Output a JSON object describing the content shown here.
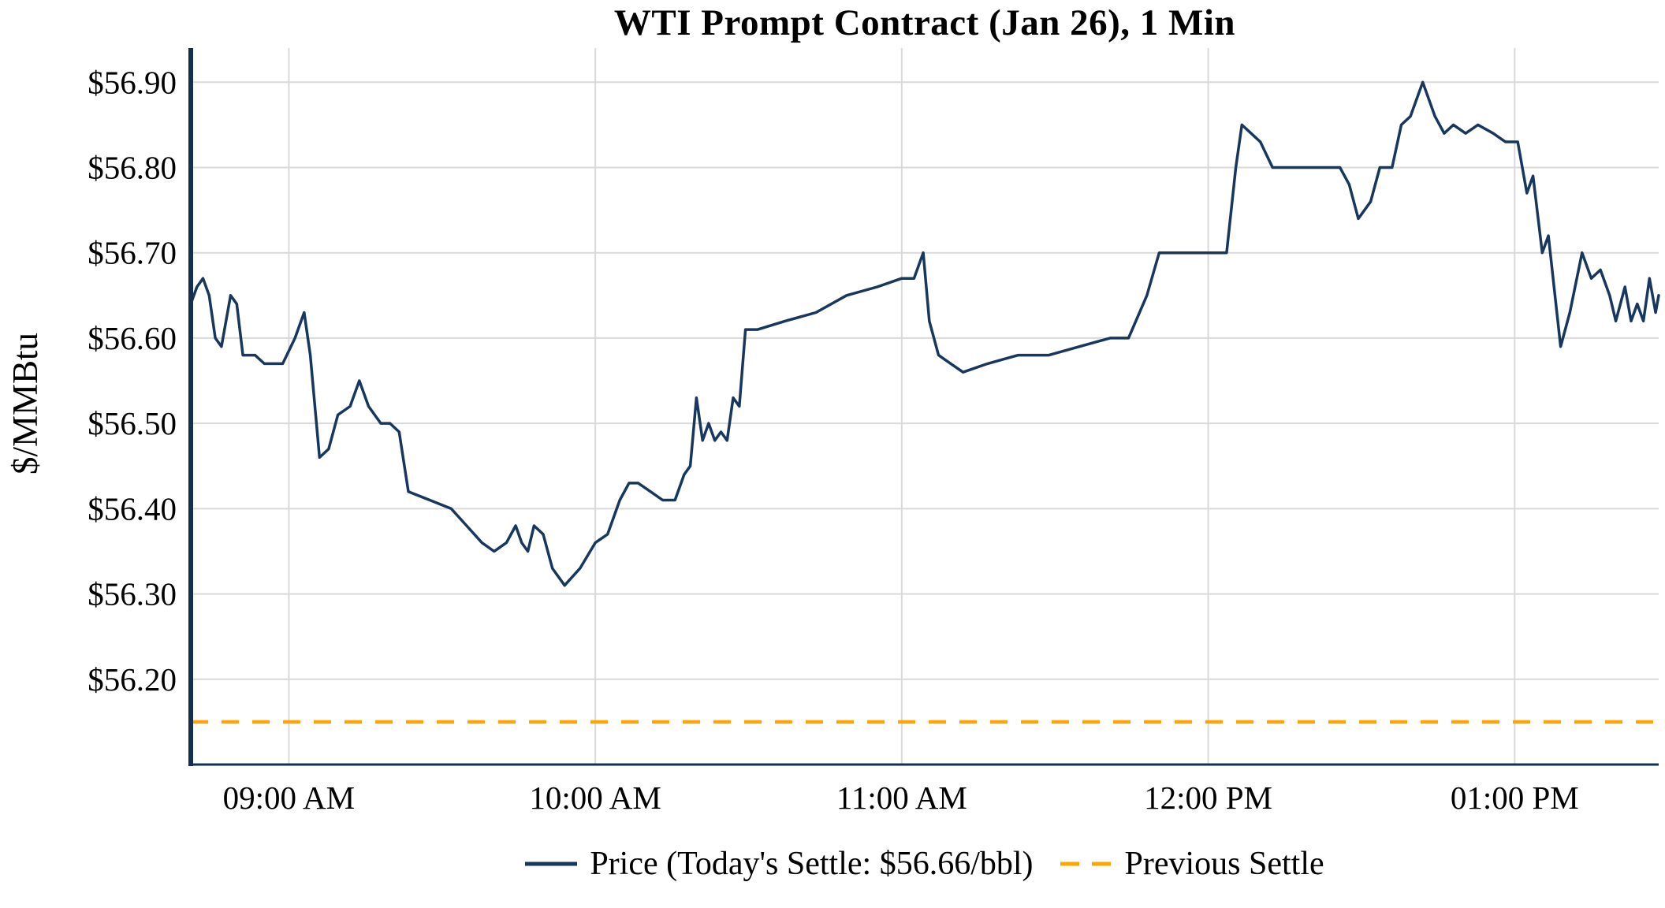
{
  "chart_data": {
    "type": "line",
    "title": "WTI Prompt Contract (Jan 26), 1 Min",
    "ylabel": "$/MMBtu",
    "xlabel": "",
    "grid": true,
    "legend_position": "bottom",
    "xlim": [
      8.68,
      13.47
    ],
    "ylim": [
      56.1,
      56.94
    ],
    "x_ticks": [
      {
        "label": "09:00 AM",
        "value": 9
      },
      {
        "label": "10:00 AM",
        "value": 10
      },
      {
        "label": "11:00 AM",
        "value": 11
      },
      {
        "label": "12:00 PM",
        "value": 12
      },
      {
        "label": "01:00 PM",
        "value": 13
      }
    ],
    "y_ticks": [
      {
        "label": "$56.90",
        "value": 56.9
      },
      {
        "label": "$56.80",
        "value": 56.8
      },
      {
        "label": "$56.70",
        "value": 56.7
      },
      {
        "label": "$56.60",
        "value": 56.6
      },
      {
        "label": "$56.50",
        "value": 56.5
      },
      {
        "label": "$56.40",
        "value": 56.4
      },
      {
        "label": "$56.30",
        "value": 56.3
      },
      {
        "label": "$56.20",
        "value": 56.2
      }
    ],
    "colors": {
      "grid": "#d9d9d9",
      "axis": "#15304f",
      "text": "#000000"
    },
    "todays_settle": 56.66,
    "previous_settle": 56.15,
    "series": [
      {
        "name": "Price (Today's Settle: $56.66/bbl)",
        "color": "#17375e",
        "style": "solid",
        "points": [
          [
            8.68,
            56.64
          ],
          [
            8.7,
            56.66
          ],
          [
            8.72,
            56.67
          ],
          [
            8.74,
            56.65
          ],
          [
            8.76,
            56.6
          ],
          [
            8.78,
            56.59
          ],
          [
            8.81,
            56.65
          ],
          [
            8.83,
            56.64
          ],
          [
            8.85,
            56.58
          ],
          [
            8.89,
            56.58
          ],
          [
            8.92,
            56.57
          ],
          [
            8.98,
            56.57
          ],
          [
            9.02,
            56.6
          ],
          [
            9.05,
            56.63
          ],
          [
            9.07,
            56.58
          ],
          [
            9.1,
            56.46
          ],
          [
            9.13,
            56.47
          ],
          [
            9.16,
            56.51
          ],
          [
            9.2,
            56.52
          ],
          [
            9.23,
            56.55
          ],
          [
            9.26,
            56.52
          ],
          [
            9.3,
            56.5
          ],
          [
            9.33,
            56.5
          ],
          [
            9.36,
            56.49
          ],
          [
            9.39,
            56.42
          ],
          [
            9.46,
            56.41
          ],
          [
            9.53,
            56.4
          ],
          [
            9.58,
            56.38
          ],
          [
            9.63,
            56.36
          ],
          [
            9.67,
            56.35
          ],
          [
            9.71,
            56.36
          ],
          [
            9.74,
            56.38
          ],
          [
            9.76,
            56.36
          ],
          [
            9.78,
            56.35
          ],
          [
            9.8,
            56.38
          ],
          [
            9.83,
            56.37
          ],
          [
            9.86,
            56.33
          ],
          [
            9.9,
            56.31
          ],
          [
            9.95,
            56.33
          ],
          [
            10.0,
            56.36
          ],
          [
            10.04,
            56.37
          ],
          [
            10.08,
            56.41
          ],
          [
            10.11,
            56.43
          ],
          [
            10.14,
            56.43
          ],
          [
            10.18,
            56.42
          ],
          [
            10.22,
            56.41
          ],
          [
            10.26,
            56.41
          ],
          [
            10.29,
            56.44
          ],
          [
            10.31,
            56.45
          ],
          [
            10.33,
            56.53
          ],
          [
            10.35,
            56.48
          ],
          [
            10.37,
            56.5
          ],
          [
            10.39,
            56.48
          ],
          [
            10.41,
            56.49
          ],
          [
            10.43,
            56.48
          ],
          [
            10.45,
            56.53
          ],
          [
            10.47,
            56.52
          ],
          [
            10.49,
            56.61
          ],
          [
            10.53,
            56.61
          ],
          [
            10.62,
            56.62
          ],
          [
            10.72,
            56.63
          ],
          [
            10.82,
            56.65
          ],
          [
            10.92,
            56.66
          ],
          [
            11.0,
            56.67
          ],
          [
            11.04,
            56.67
          ],
          [
            11.07,
            56.7
          ],
          [
            11.09,
            56.62
          ],
          [
            11.12,
            56.58
          ],
          [
            11.16,
            56.57
          ],
          [
            11.2,
            56.56
          ],
          [
            11.28,
            56.57
          ],
          [
            11.38,
            56.58
          ],
          [
            11.48,
            56.58
          ],
          [
            11.58,
            56.59
          ],
          [
            11.68,
            56.6
          ],
          [
            11.74,
            56.6
          ],
          [
            11.8,
            56.65
          ],
          [
            11.84,
            56.7
          ],
          [
            11.92,
            56.7
          ],
          [
            12.0,
            56.7
          ],
          [
            12.06,
            56.7
          ],
          [
            12.09,
            56.8
          ],
          [
            12.11,
            56.85
          ],
          [
            12.14,
            56.84
          ],
          [
            12.17,
            56.83
          ],
          [
            12.21,
            56.8
          ],
          [
            12.28,
            56.8
          ],
          [
            12.35,
            56.8
          ],
          [
            12.43,
            56.8
          ],
          [
            12.46,
            56.78
          ],
          [
            12.49,
            56.74
          ],
          [
            12.53,
            56.76
          ],
          [
            12.56,
            56.8
          ],
          [
            12.6,
            56.8
          ],
          [
            12.63,
            56.85
          ],
          [
            12.66,
            56.86
          ],
          [
            12.7,
            56.9
          ],
          [
            12.74,
            56.86
          ],
          [
            12.77,
            56.84
          ],
          [
            12.8,
            56.85
          ],
          [
            12.84,
            56.84
          ],
          [
            12.88,
            56.85
          ],
          [
            12.93,
            56.84
          ],
          [
            12.97,
            56.83
          ],
          [
            13.01,
            56.83
          ],
          [
            13.04,
            56.77
          ],
          [
            13.06,
            56.79
          ],
          [
            13.09,
            56.7
          ],
          [
            13.11,
            56.72
          ],
          [
            13.15,
            56.59
          ],
          [
            13.18,
            56.63
          ],
          [
            13.22,
            56.7
          ],
          [
            13.25,
            56.67
          ],
          [
            13.28,
            56.68
          ],
          [
            13.31,
            56.65
          ],
          [
            13.33,
            56.62
          ],
          [
            13.36,
            56.66
          ],
          [
            13.38,
            56.62
          ],
          [
            13.4,
            56.64
          ],
          [
            13.42,
            56.62
          ],
          [
            13.44,
            56.67
          ],
          [
            13.46,
            56.63
          ],
          [
            13.47,
            56.65
          ]
        ]
      },
      {
        "name": "Previous Settle",
        "color": "#ffa500",
        "style": "dashed",
        "value": 56.15
      }
    ]
  }
}
